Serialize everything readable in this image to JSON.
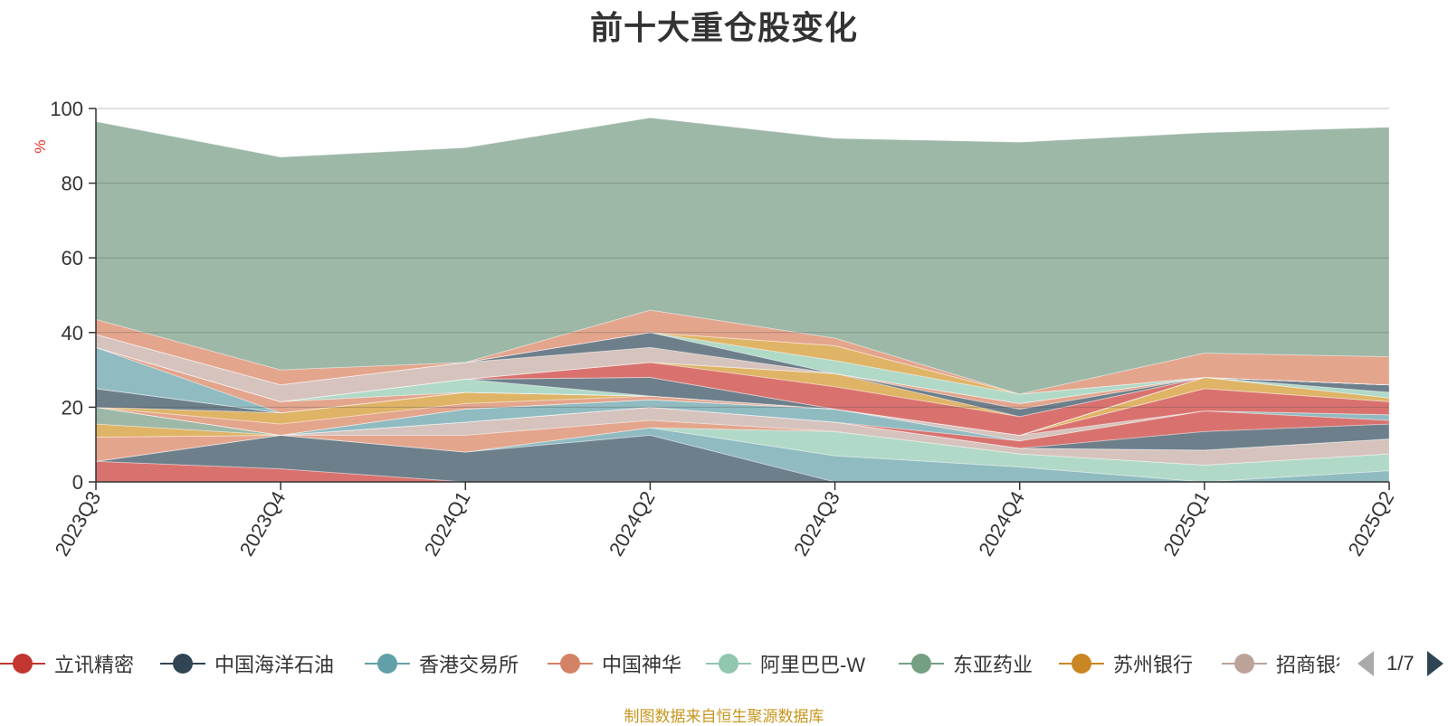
{
  "title": "前十大重仓股变化",
  "footer": "制图数据来自恒生聚源数据库",
  "legend": {
    "items": [
      {
        "name": "立讯精密",
        "color": "#c23531"
      },
      {
        "name": "中国海洋石油",
        "color": "#2f4554"
      },
      {
        "name": "香港交易所",
        "color": "#61a0a8"
      },
      {
        "name": "中国神华",
        "color": "#d48265"
      },
      {
        "name": "阿里巴巴-W",
        "color": "#91c7ae"
      },
      {
        "name": "东亚药业",
        "color": "#749f83"
      },
      {
        "name": "苏州银行",
        "color": "#ca8622"
      },
      {
        "name": "招商银行",
        "color": "#bda29a"
      }
    ],
    "page_text": "1/7"
  },
  "chart_data": {
    "type": "area",
    "stacked": true,
    "title": "前十大重仓股变化",
    "ylabel": "%",
    "ylim": [
      0,
      100
    ],
    "yticks": [
      0,
      20,
      40,
      60,
      80,
      100
    ],
    "categories": [
      "2023Q3",
      "2023Q4",
      "2024Q1",
      "2024Q2",
      "2024Q3",
      "2024Q4",
      "2025Q1",
      "2025Q2"
    ],
    "grid": true,
    "legend_position": "bottom",
    "series": [
      {
        "name": "立讯精密",
        "color": "#d9726e",
        "values": [
          5.5,
          3.5,
          0,
          0,
          0,
          0,
          0,
          0
        ]
      },
      {
        "name": "中国海洋石油",
        "color": "#6e7f8c",
        "values": [
          0,
          9,
          8,
          12.5,
          0,
          0,
          0,
          0
        ]
      },
      {
        "name": "香港交易所",
        "color": "#8fbbc1",
        "values": [
          0,
          0,
          0,
          2,
          7,
          4,
          0,
          3
        ]
      },
      {
        "name": "阿里巴巴-W",
        "color": "#b1d9c8",
        "values": [
          0,
          0,
          0,
          0,
          6.5,
          3.5,
          4.5,
          4.5
        ]
      },
      {
        "name": "中国神华",
        "color": "#e4a58d",
        "values": [
          6.5,
          0,
          4.5,
          2,
          0,
          0,
          0,
          0
        ]
      },
      {
        "name": "招商银行",
        "color": "#d6c3bd",
        "values": [
          0,
          0,
          3.5,
          3.5,
          2.5,
          1.5,
          4,
          4
        ]
      },
      {
        "name": "苏州银行",
        "color": "#e0b466",
        "values": [
          3.5,
          0,
          0,
          0,
          0,
          0,
          0,
          0
        ]
      },
      {
        "name": "东亚药业",
        "color": "#9db8a7",
        "values": [
          4.5,
          0,
          0,
          0,
          0,
          0,
          0,
          0
        ]
      },
      {
        "name": "中国海洋石油",
        "color": "#6e7f8c",
        "values": [
          0,
          0,
          0,
          0,
          0,
          0,
          5,
          4
        ]
      },
      {
        "name": "立讯精密",
        "color": "#d9726e",
        "values": [
          0,
          0,
          0,
          0,
          0,
          2,
          5.5,
          1
        ]
      },
      {
        "name": "香港交易所",
        "color": "#8fbbc1",
        "values": [
          0,
          0,
          3.5,
          2,
          3.5,
          0,
          0,
          1.5
        ]
      },
      {
        "name": "招商银行",
        "color": "#d6c3bd",
        "values": [
          0,
          0,
          0,
          0,
          0,
          1.5,
          0,
          0
        ]
      },
      {
        "name": "立讯精密",
        "color": "#d9726e",
        "values": [
          0,
          0,
          0,
          0,
          0,
          0,
          6,
          3.5
        ]
      },
      {
        "name": "中国神华",
        "color": "#e4a58d",
        "values": [
          0,
          3,
          1.5,
          1,
          0,
          0,
          0,
          0
        ]
      },
      {
        "name": "苏州银行",
        "color": "#e0b466",
        "values": [
          0,
          3,
          3,
          0,
          0,
          0,
          3,
          1
        ]
      },
      {
        "name": "中国海洋石油",
        "color": "#6e7f8c",
        "values": [
          5,
          0,
          0,
          0,
          0,
          0,
          0,
          0
        ]
      },
      {
        "name": "阿里巴巴-W",
        "color": "#b1d9c8",
        "values": [
          0,
          0,
          0,
          0,
          0,
          0,
          0,
          1.5
        ]
      },
      {
        "name": "中国海洋石油",
        "color": "#6e7f8c",
        "values": [
          0,
          0,
          0,
          0,
          0,
          0,
          0,
          2
        ]
      },
      {
        "name": "香港交易所",
        "color": "#8fbbc1",
        "values": [
          11,
          0,
          0,
          0,
          0,
          0,
          0,
          0
        ]
      },
      {
        "name": "中国神华",
        "color": "#e4a58d",
        "values": [
          0,
          3,
          0,
          0,
          0,
          0,
          0,
          0
        ]
      },
      {
        "name": "阿里巴巴-W",
        "color": "#b1d9c8",
        "values": [
          0,
          0,
          3.5,
          0,
          0,
          0,
          0,
          0
        ]
      },
      {
        "name": "中国海洋石油",
        "color": "#6e7f8c",
        "values": [
          0,
          0,
          0,
          5,
          0,
          0,
          0,
          0
        ]
      },
      {
        "name": "中国神华",
        "color": "#e4a58d",
        "values": [
          0,
          0,
          0,
          0,
          0,
          0,
          0,
          0
        ]
      },
      {
        "name": "立讯精密",
        "color": "#d9726e",
        "values": [
          0,
          0,
          0,
          4,
          6,
          5,
          0,
          0
        ]
      },
      {
        "name": "苏州银行",
        "color": "#e0b466",
        "values": [
          0,
          0,
          0,
          0,
          3.5,
          0,
          0,
          0
        ]
      },
      {
        "name": "中国海洋石油",
        "color": "#6e7f8c",
        "values": [
          0,
          0,
          0,
          0,
          0,
          2,
          0,
          0
        ]
      },
      {
        "name": "中国神华",
        "color": "#e4a58d",
        "values": [
          0,
          0,
          0,
          0,
          0,
          1.5,
          0,
          0
        ]
      },
      {
        "name": "招商银行",
        "color": "#d6c3bd",
        "values": [
          3.5,
          4.5,
          4.5,
          4,
          0,
          0,
          0,
          0
        ]
      },
      {
        "name": "中国海洋石油",
        "color": "#6e7f8c",
        "values": [
          0,
          0,
          0,
          4,
          0,
          0,
          0,
          0
        ]
      },
      {
        "name": "阿里巴巴-W",
        "color": "#b1d9c8",
        "values": [
          0,
          0,
          0,
          0,
          3.5,
          2.5,
          0,
          0
        ]
      },
      {
        "name": "苏州银行",
        "color": "#e0b466",
        "values": [
          0,
          0,
          0,
          0,
          4,
          0,
          0,
          0
        ]
      },
      {
        "name": "香港交易所",
        "color": "#8fbbc1",
        "values": [
          0,
          0,
          0,
          0,
          0,
          0,
          0,
          0
        ]
      },
      {
        "name": "中国神华",
        "color": "#e4a58d",
        "values": [
          4,
          4,
          0,
          6,
          2,
          0,
          6.5,
          7.5
        ]
      },
      {
        "name": "东亚药业",
        "color": "#9db8a7",
        "values": [
          53,
          57,
          57.5,
          51.5,
          53.5,
          67.5,
          59,
          61.5
        ]
      }
    ]
  }
}
